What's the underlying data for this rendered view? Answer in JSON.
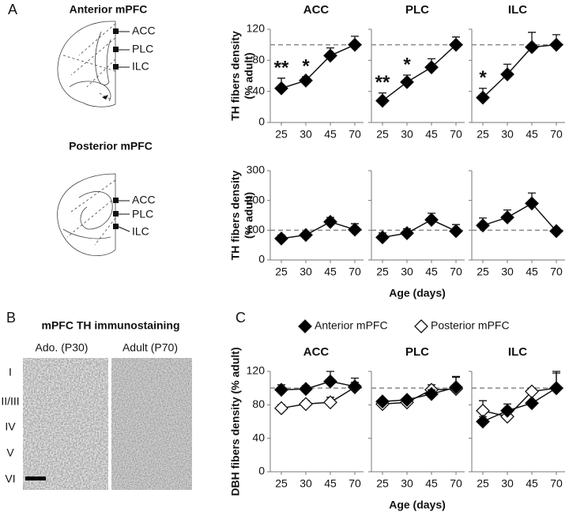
{
  "panel_labels": [
    "A",
    "B",
    "C"
  ],
  "diagrams": [
    {
      "title": "Anterior mPFC",
      "regions": [
        "ACC",
        "PLC",
        "ILC"
      ]
    },
    {
      "title": "Posterior mPFC",
      "regions": [
        "ACC",
        "PLC",
        "ILC"
      ]
    }
  ],
  "staining": {
    "title": "mPFC TH immunostaining",
    "columns": [
      "Ado. (P30)",
      "Adult (P70)"
    ],
    "layers": [
      "I",
      "II/III",
      "IV",
      "V",
      "VI"
    ]
  },
  "chart_data": [
    {
      "type": "line",
      "title": "ACC",
      "ylabel": [
        "TH fibers density",
        "(% adult)"
      ],
      "categories": [
        25,
        30,
        45,
        70
      ],
      "series": [
        {
          "color": "#000000",
          "values": [
            44,
            54,
            86,
            100
          ],
          "errors": [
            13,
            5,
            10,
            11
          ]
        }
      ],
      "ylim": [
        0,
        120
      ],
      "yticks": [
        0,
        40,
        80,
        120
      ],
      "reference_line": 100,
      "annotations": [
        {
          "category": 25,
          "text": "**"
        },
        {
          "category": 30,
          "text": "*"
        }
      ]
    },
    {
      "type": "line",
      "title": "PLC",
      "categories": [
        25,
        30,
        45,
        70
      ],
      "series": [
        {
          "color": "#000000",
          "values": [
            28,
            52,
            71,
            100
          ],
          "errors": [
            10,
            9,
            11,
            10
          ]
        }
      ],
      "ylim": [
        0,
        120
      ],
      "yticks": [
        0,
        40,
        80,
        120
      ],
      "show_ytick_labels": false,
      "reference_line": 100,
      "annotations": [
        {
          "category": 25,
          "text": "**"
        },
        {
          "category": 30,
          "text": "*"
        }
      ]
    },
    {
      "type": "line",
      "title": "ILC",
      "categories": [
        25,
        30,
        45,
        70
      ],
      "series": [
        {
          "color": "#000000",
          "values": [
            32,
            62,
            97,
            100
          ],
          "errors": [
            12,
            13,
            19,
            13
          ]
        }
      ],
      "ylim": [
        0,
        120
      ],
      "yticks": [
        0,
        40,
        80,
        120
      ],
      "show_ytick_labels": false,
      "reference_line": 100,
      "annotations": [
        {
          "category": 25,
          "text": "*"
        }
      ]
    },
    {
      "type": "line",
      "ylabel": [
        "TH fibers density",
        "(% adult)"
      ],
      "categories": [
        25,
        30,
        45,
        70
      ],
      "series": [
        {
          "color": "#000000",
          "values": [
            72,
            84,
            128,
            102
          ],
          "errors": [
            12,
            10,
            15,
            20
          ]
        }
      ],
      "ylim": [
        0,
        300
      ],
      "yticks": [
        0,
        100,
        200,
        300
      ],
      "reference_line": 100
    },
    {
      "type": "line",
      "xlabel": "Age (days)",
      "categories": [
        25,
        30,
        45,
        70
      ],
      "series": [
        {
          "color": "#000000",
          "values": [
            76,
            90,
            135,
            97
          ],
          "errors": [
            15,
            15,
            22,
            22
          ]
        }
      ],
      "ylim": [
        0,
        300
      ],
      "yticks": [
        0,
        100,
        200,
        300
      ],
      "show_ytick_labels": false,
      "reference_line": 100
    },
    {
      "type": "line",
      "categories": [
        25,
        30,
        45,
        70
      ],
      "series": [
        {
          "color": "#000000",
          "values": [
            116,
            143,
            190,
            97
          ],
          "errors": [
            25,
            25,
            35,
            10
          ]
        }
      ],
      "ylim": [
        0,
        300
      ],
      "yticks": [
        0,
        100,
        200,
        300
      ],
      "show_ytick_labels": false,
      "reference_line": 100
    },
    {
      "type": "line",
      "title": "ACC",
      "ylabel": "DBH fibers density (% adult)",
      "categories": [
        25,
        30,
        45,
        70
      ],
      "legend": true,
      "series": [
        {
          "name": "Anterior mPFC",
          "color": "#000000",
          "values": [
            98,
            99,
            108,
            102
          ],
          "errors": [
            6,
            4,
            12,
            10
          ]
        },
        {
          "name": "Posterior mPFC",
          "color": "#ffffff",
          "values": [
            76,
            81,
            83,
            101
          ],
          "errors": [
            4,
            4,
            6,
            6
          ]
        }
      ],
      "ylim": [
        0,
        120
      ],
      "yticks": [
        0,
        40,
        80,
        120
      ],
      "reference_line": 100
    },
    {
      "type": "line",
      "title": "PLC",
      "xlabel": "Age (days)",
      "categories": [
        25,
        30,
        45,
        70
      ],
      "series": [
        {
          "name": "Anterior mPFC",
          "color": "#000000",
          "values": [
            84,
            86,
            93,
            101
          ],
          "errors": [
            3,
            3,
            5,
            13
          ]
        },
        {
          "name": "Posterior mPFC",
          "color": "#ffffff",
          "values": [
            81,
            83,
            98,
            99
          ],
          "errors": [
            3,
            3,
            6,
            14
          ]
        }
      ],
      "ylim": [
        0,
        120
      ],
      "yticks": [
        0,
        40,
        80,
        120
      ],
      "show_ytick_labels": false,
      "reference_line": 100
    },
    {
      "type": "line",
      "title": "ILC",
      "categories": [
        25,
        30,
        45,
        70
      ],
      "series": [
        {
          "name": "Anterior mPFC",
          "color": "#000000",
          "values": [
            60,
            73,
            82,
            100
          ],
          "errors": [
            6,
            8,
            3,
            20
          ]
        },
        {
          "name": "Posterior mPFC",
          "color": "#ffffff",
          "values": [
            73,
            66,
            96,
            100
          ],
          "errors": [
            12,
            6,
            4,
            18
          ]
        }
      ],
      "ylim": [
        0,
        120
      ],
      "yticks": [
        0,
        40,
        80,
        120
      ],
      "show_ytick_labels": false,
      "reference_line": 100
    }
  ]
}
